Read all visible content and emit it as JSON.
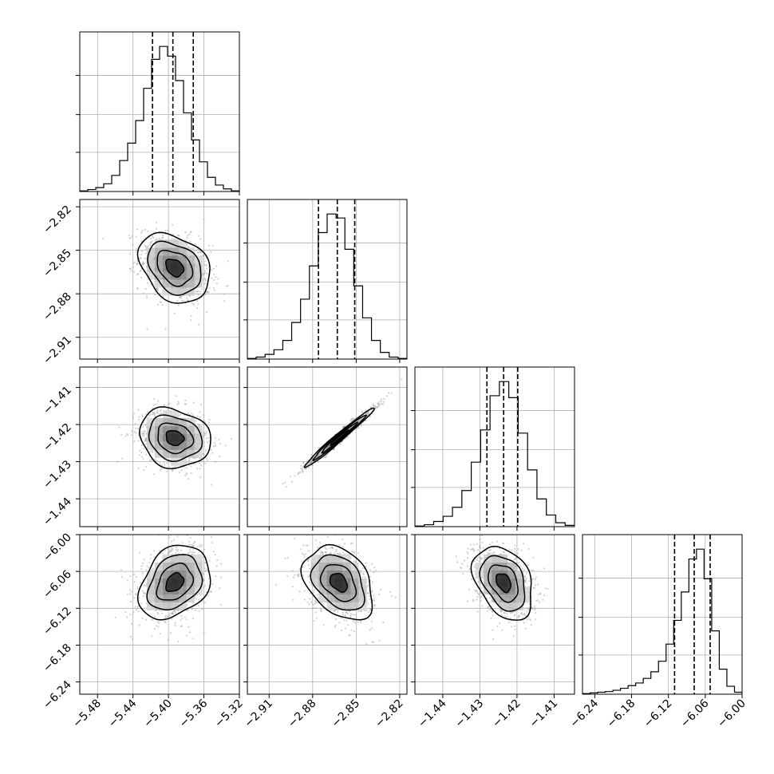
{
  "chart_data": {
    "type": "corner",
    "grid": true,
    "colors": {
      "line": "#000000",
      "grid": "#b0b0b0",
      "scatter": "#9a9a9a"
    },
    "parameters": [
      {
        "limits": [
          -5.5,
          -5.32
        ],
        "ticks": [
          -5.48,
          -5.44,
          -5.4,
          -5.36,
          -5.32
        ],
        "tick_labels": [
          "−5.48",
          "−5.44",
          "−5.40",
          "−5.36",
          "−5.32"
        ],
        "mean": -5.393,
        "std": 0.02,
        "quantiles": [
          -5.418,
          -5.395,
          -5.372
        ]
      },
      {
        "limits": [
          -2.925,
          -2.815
        ],
        "ticks": [
          -2.91,
          -2.88,
          -2.85,
          -2.82
        ],
        "tick_labels": [
          "−2.91",
          "−2.88",
          "−2.85",
          "−2.82"
        ],
        "mean": -2.862,
        "std": 0.012,
        "quantiles": [
          -2.876,
          -2.863,
          -2.851
        ]
      },
      {
        "limits": [
          -1.4475,
          -1.4045
        ],
        "ticks": [
          -1.44,
          -1.43,
          -1.42,
          -1.41
        ],
        "tick_labels": [
          "−1.44",
          "−1.43",
          "−1.42",
          "−1.41"
        ],
        "mean": -1.4236,
        "std": 0.004,
        "quantiles": [
          -1.4281,
          -1.4236,
          -1.4198
        ]
      },
      {
        "limits": [
          -6.26,
          -6.0
        ],
        "ticks": [
          -6.24,
          -6.18,
          -6.12,
          -6.06,
          -6.0
        ],
        "tick_labels": [
          "−6.24",
          "−6.18",
          "−6.12",
          "−6.06",
          "−6.00"
        ],
        "mean": -6.078,
        "std": 0.03,
        "quantiles": [
          -6.11,
          -6.078,
          -6.052
        ]
      }
    ],
    "histograms": [
      {
        "param": 0,
        "counts": [
          1,
          3,
          6,
          12,
          25,
          48,
          75,
          110,
          160,
          205,
          225,
          210,
          172,
          122,
          80,
          46,
          22,
          10,
          4,
          1
        ],
        "quantiles": [
          -5.418,
          -5.395,
          -5.372
        ]
      },
      {
        "param": 1,
        "counts": [
          1,
          3,
          7,
          14,
          28,
          55,
          90,
          140,
          190,
          218,
          212,
          165,
          110,
          62,
          28,
          10,
          3,
          1
        ],
        "quantiles": [
          -2.876,
          -2.863,
          -2.851
        ]
      },
      {
        "param": 2,
        "counts": [
          1,
          3,
          8,
          16,
          30,
          56,
          100,
          150,
          203,
          225,
          200,
          145,
          88,
          43,
          18,
          6,
          2
        ],
        "quantiles": [
          -1.4281,
          -1.4236,
          -1.4198
        ]
      },
      {
        "param": 3,
        "counts": [
          1,
          2,
          3,
          4,
          6,
          9,
          13,
          17,
          24,
          34,
          50,
          76,
          112,
          155,
          205,
          220,
          175,
          96,
          38,
          12,
          3
        ],
        "quantiles": [
          -6.11,
          -6.078,
          -6.052
        ]
      }
    ],
    "pairs": [
      {
        "x": 0,
        "y": 1,
        "corr": -0.3
      },
      {
        "x": 0,
        "y": 2,
        "corr": -0.15
      },
      {
        "x": 1,
        "y": 2,
        "corr": 0.985
      },
      {
        "x": 0,
        "y": 3,
        "corr": 0.3
      },
      {
        "x": 1,
        "y": 3,
        "corr": -0.35
      },
      {
        "x": 2,
        "y": 3,
        "corr": -0.35
      }
    ]
  }
}
